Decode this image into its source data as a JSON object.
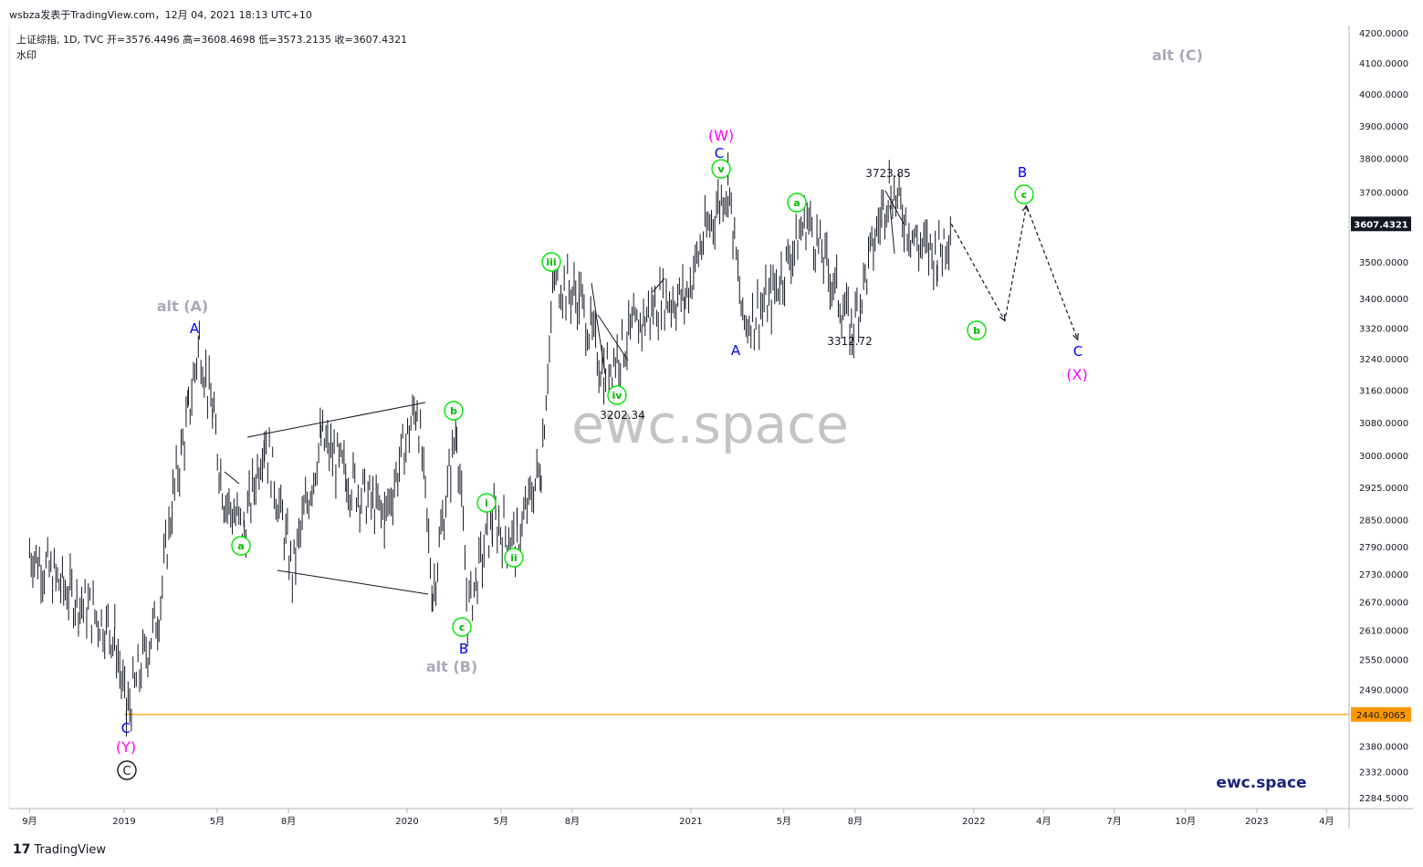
{
  "header": {
    "top_line": "wsbza发表于TradingView.com，12月 04, 2021 18:13 UTC+10",
    "symbol_line": "上证综指, 1D, TVC  开=3576.4496  高=3608.4698  低=3573.2135  收=3607.4321",
    "sub_label": "水印"
  },
  "footer": {
    "brand": "TradingView"
  },
  "watermark": "ewc.space",
  "brand_corner": "ewc.space",
  "colors": {
    "price": "#131722",
    "green_label": "#00e600",
    "blue_label": "#0000ff",
    "magenta_label": "#ff00ff",
    "grey_label": "#a8aab8",
    "support": "#ff9800",
    "current_tag_bg": "#131722"
  },
  "chart_data": {
    "type": "ohlc",
    "title": "上证综指, 1D, TVC",
    "ylim": [
      2284.5,
      4200
    ],
    "y_scale": "log",
    "y_ticks": [
      "4200.0000",
      "4100.0000",
      "4000.0000",
      "3900.0000",
      "3800.0000",
      "3700.0000",
      "3500.0000",
      "3400.0000",
      "3320.0000",
      "3240.0000",
      "3160.0000",
      "3080.0000",
      "3000.0000",
      "2925.0000",
      "2850.0000",
      "2790.0000",
      "2730.0000",
      "2670.0000",
      "2610.0000",
      "2550.0000",
      "2490.0000",
      "2380.0000",
      "2332.0000",
      "2284.5000"
    ],
    "x_ticks": [
      "9月",
      "2019",
      "5月",
      "8月",
      "2020",
      "5月",
      "8月",
      "2021",
      "5月",
      "8月",
      "2022",
      "4月",
      "7月",
      "10月",
      "2023",
      "4月"
    ],
    "current_price": "3607.4321",
    "support_level": "2440.9065",
    "price_path": [
      [
        "2018-09-01",
        2780
      ],
      [
        "2018-10-15",
        2700
      ],
      [
        "2018-11-20",
        2650
      ],
      [
        "2018-12-20",
        2600
      ],
      [
        "2019-01-04",
        2440
      ],
      [
        "2019-02-15",
        2650
      ],
      [
        "2019-03-05",
        2900
      ],
      [
        "2019-03-25",
        3100
      ],
      [
        "2019-04-08",
        3288
      ],
      [
        "2019-04-25",
        3100
      ],
      [
        "2019-05-10",
        2900
      ],
      [
        "2019-06-05",
        2822
      ],
      [
        "2019-07-01",
        3048
      ],
      [
        "2019-08-06",
        2733
      ],
      [
        "2019-09-12",
        3040
      ],
      [
        "2019-10-15",
        2950
      ],
      [
        "2019-12-03",
        2855
      ],
      [
        "2020-01-14",
        3127
      ],
      [
        "2020-02-03",
        2685
      ],
      [
        "2020-03-05",
        3070
      ],
      [
        "2020-03-19",
        2646
      ],
      [
        "2020-04-20",
        2850
      ],
      [
        "2020-05-22",
        2800
      ],
      [
        "2020-06-22",
        2980
      ],
      [
        "2020-07-09",
        3458
      ],
      [
        "2020-08-10",
        3400
      ],
      [
        "2020-09-11",
        3202
      ],
      [
        "2020-10-15",
        3300
      ],
      [
        "2020-11-24",
        3400
      ],
      [
        "2020-12-25",
        3400
      ],
      [
        "2021-01-15",
        3550
      ],
      [
        "2021-02-18",
        3731
      ],
      [
        "2021-03-09",
        3328
      ],
      [
        "2021-04-15",
        3400
      ],
      [
        "2021-05-31",
        3624
      ],
      [
        "2021-07-28",
        3312
      ],
      [
        "2021-09-14",
        3723
      ],
      [
        "2021-10-20",
        3550
      ],
      [
        "2021-11-15",
        3520
      ],
      [
        "2021-12-03",
        3607
      ]
    ],
    "projection": [
      [
        "2021-12-03",
        3607
      ],
      [
        "2022-02-10",
        3340
      ],
      [
        "2022-03-10",
        3660
      ],
      [
        "2022-05-15",
        3290
      ]
    ],
    "annotations": {
      "price_labels": [
        "3723.85",
        "3312.72",
        "3202.34"
      ],
      "alt_A": "alt (A)",
      "alt_B": "alt (B)",
      "alt_C": "alt (C)",
      "W": "(W)",
      "X": "(X)",
      "Y": "(Y)",
      "circ_C": "C",
      "A": "A",
      "B": "B",
      "C": "C",
      "a": "a",
      "b": "b",
      "c": "c",
      "i": "i",
      "ii": "ii",
      "iii": "iii",
      "iv": "iv",
      "v": "v"
    }
  }
}
